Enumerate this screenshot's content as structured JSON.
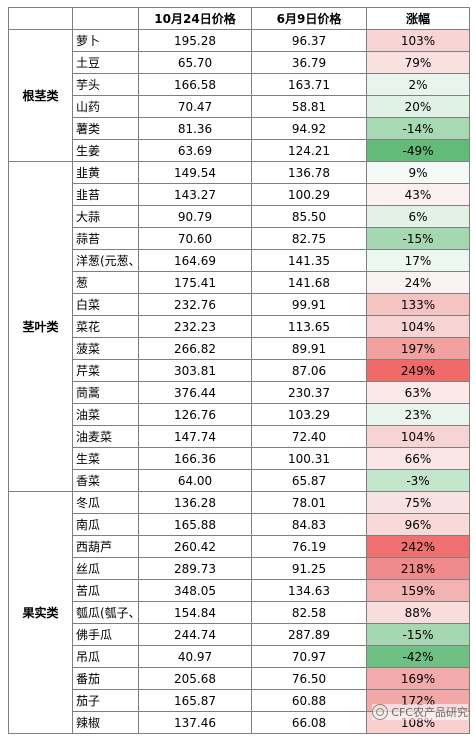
{
  "headers": {
    "category": "",
    "name": "",
    "price_oct": "10月24日价格",
    "price_jun": "6月9日价格",
    "change": "涨幅"
  },
  "groups": [
    {
      "category": "根茎类",
      "rows": [
        {
          "name": "萝卜",
          "oct": "195.28",
          "jun": "96.37",
          "chg": "103%",
          "bg": "#f8d4d4"
        },
        {
          "name": "土豆",
          "oct": "65.70",
          "jun": "36.79",
          "chg": "79%",
          "bg": "#fae1e1"
        },
        {
          "name": "芋头",
          "oct": "166.58",
          "jun": "163.71",
          "chg": "2%",
          "bg": "#e9f5ec"
        },
        {
          "name": "山药",
          "oct": "70.47",
          "jun": "58.81",
          "chg": "20%",
          "bg": "#e0f1e5"
        },
        {
          "name": "薯类",
          "oct": "81.36",
          "jun": "94.92",
          "chg": "-14%",
          "bg": "#a7d9b2"
        },
        {
          "name": "生姜",
          "oct": "63.69",
          "jun": "124.21",
          "chg": "-49%",
          "bg": "#63bb7a"
        }
      ]
    },
    {
      "category": "茎叶类",
      "rows": [
        {
          "name": "韭黄",
          "oct": "149.54",
          "jun": "136.78",
          "chg": "9%",
          "bg": "#f4faf5"
        },
        {
          "name": "韭苔",
          "oct": "143.27",
          "jun": "100.29",
          "chg": "43%",
          "bg": "#fcf1f1"
        },
        {
          "name": "大蒜",
          "oct": "90.79",
          "jun": "85.50",
          "chg": "6%",
          "bg": "#e2f2e6"
        },
        {
          "name": "蒜苔",
          "oct": "70.60",
          "jun": "82.75",
          "chg": "-15%",
          "bg": "#a5d8b0"
        },
        {
          "name": "洋葱(元葱、",
          "oct": "164.69",
          "jun": "141.35",
          "chg": "17%",
          "bg": "#ecf7ef"
        },
        {
          "name": "葱",
          "oct": "175.41",
          "jun": "141.68",
          "chg": "24%",
          "bg": "#fbf3f3"
        },
        {
          "name": "白菜",
          "oct": "232.76",
          "jun": "99.91",
          "chg": "133%",
          "bg": "#f6c3c3"
        },
        {
          "name": "菜花",
          "oct": "232.23",
          "jun": "113.65",
          "chg": "104%",
          "bg": "#f8d3d3"
        },
        {
          "name": "菠菜",
          "oct": "266.82",
          "jun": "89.91",
          "chg": "197%",
          "bg": "#f2a0a0"
        },
        {
          "name": "芹菜",
          "oct": "303.81",
          "jun": "87.06",
          "chg": "249%",
          "bg": "#f06a6a"
        },
        {
          "name": "茼蒿",
          "oct": "376.44",
          "jun": "230.37",
          "chg": "63%",
          "bg": "#fbe8e8"
        },
        {
          "name": "油菜",
          "oct": "126.76",
          "jun": "103.29",
          "chg": "23%",
          "bg": "#eaf6ed"
        },
        {
          "name": "油麦菜",
          "oct": "147.74",
          "jun": "72.40",
          "chg": "104%",
          "bg": "#f8d3d3"
        },
        {
          "name": "生菜",
          "oct": "166.36",
          "jun": "100.31",
          "chg": "66%",
          "bg": "#fae6e6"
        },
        {
          "name": "香菜",
          "oct": "64.00",
          "jun": "65.87",
          "chg": "-3%",
          "bg": "#c3e5cb"
        }
      ]
    },
    {
      "category": "果实类",
      "rows": [
        {
          "name": "冬瓜",
          "oct": "136.28",
          "jun": "78.01",
          "chg": "75%",
          "bg": "#fae2e2"
        },
        {
          "name": "南瓜",
          "oct": "165.88",
          "jun": "84.83",
          "chg": "96%",
          "bg": "#f9d8d8"
        },
        {
          "name": "西葫芦",
          "oct": "260.42",
          "jun": "76.19",
          "chg": "242%",
          "bg": "#f07070"
        },
        {
          "name": "丝瓜",
          "oct": "289.73",
          "jun": "91.25",
          "chg": "218%",
          "bg": "#f18a8a"
        },
        {
          "name": "苦瓜",
          "oct": "348.05",
          "jun": "134.63",
          "chg": "159%",
          "bg": "#f4b3b3"
        },
        {
          "name": "瓠瓜(瓠子、",
          "oct": "154.84",
          "jun": "82.58",
          "chg": "88%",
          "bg": "#f9dcdc"
        },
        {
          "name": "佛手瓜",
          "oct": "244.74",
          "jun": "287.89",
          "chg": "-15%",
          "bg": "#a5d8b0"
        },
        {
          "name": "吊瓜",
          "oct": "40.97",
          "jun": "70.97",
          "chg": "-42%",
          "bg": "#6fc085"
        },
        {
          "name": "番茄",
          "oct": "205.68",
          "jun": "76.50",
          "chg": "169%",
          "bg": "#f3aaaa"
        },
        {
          "name": "茄子",
          "oct": "165.87",
          "jun": "60.88",
          "chg": "172%",
          "bg": "#f3a8a8"
        },
        {
          "name": "辣椒",
          "oct": "137.46",
          "jun": "66.08",
          "chg": "108%",
          "bg": "#f8d0d0"
        }
      ]
    }
  ],
  "watermark": "CFC农产品研究"
}
